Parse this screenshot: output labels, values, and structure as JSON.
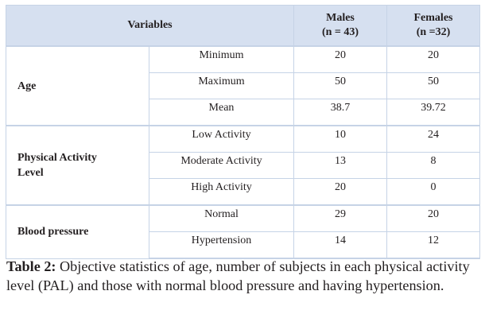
{
  "table": {
    "header": {
      "variables": "Variables",
      "males_name": "Males",
      "males_n": "(n = 43)",
      "females_name": "Females",
      "females_n": "(n =32)"
    },
    "groups": [
      {
        "name": "Age",
        "rows": [
          {
            "label": "Minimum",
            "males": "20",
            "females": "20"
          },
          {
            "label": "Maximum",
            "males": "50",
            "females": "50"
          },
          {
            "label": "Mean",
            "males": "38.7",
            "females": "39.72"
          }
        ]
      },
      {
        "name_line1": "Physical Activity",
        "name_line2": "Level",
        "rows": [
          {
            "label": "Low Activity",
            "males": "10",
            "females": "24"
          },
          {
            "label": "Moderate Activity",
            "males": "13",
            "females": "8"
          },
          {
            "label": "High Activity",
            "males": "20",
            "females": "0"
          }
        ]
      },
      {
        "name": "Blood pressure",
        "rows": [
          {
            "label": "Normal",
            "males": "29",
            "females": "20"
          },
          {
            "label": "Hypertension",
            "males": "14",
            "females": "12"
          }
        ]
      }
    ]
  },
  "caption": {
    "label": "Table 2:",
    "text": " Objective statistics of age, number of subjects in each physical activity level (PAL) and those with normal blood pressure and having hypertension."
  }
}
